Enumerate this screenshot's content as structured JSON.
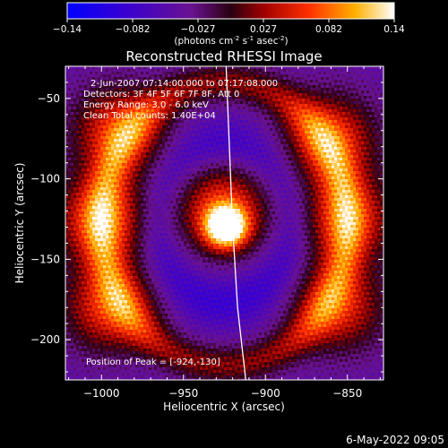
{
  "colorbar": {
    "ticks": [
      "-0.14",
      "-0.082",
      "-0.027",
      "0.027",
      "0.082",
      "0.14"
    ],
    "units_prefix": "(photons cm",
    "units_sup1": "-2",
    "units_mid": " s",
    "units_sup2": "-1",
    "units_mid2": " asec",
    "units_sup3": "-2",
    "units_suffix": ")"
  },
  "footer": {
    "date": "6-May-2022 09:05"
  },
  "chart_data": {
    "type": "heatmap",
    "title": "Reconstructed RHESSI Image",
    "xlabel": "Heliocentric X (arcsec)",
    "ylabel": "Heliocentric Y (arcsec)",
    "xlim": [
      -1022,
      -828
    ],
    "ylim": [
      -225,
      -30
    ],
    "x_ticks": [
      -1000,
      -950,
      -900,
      -850
    ],
    "y_ticks": [
      -50,
      -100,
      -150,
      -200
    ],
    "x_tick_labels": [
      "−1000",
      "−950",
      "−900",
      "−850"
    ],
    "y_tick_labels": [
      "−50",
      "−100",
      "−150",
      "−200"
    ],
    "color_range": [
      -0.14,
      0.14
    ],
    "colormap": "rainbow-thermal",
    "annotations": [
      "2-Jun-2007 07:14:00.000 to 07:17:08.000",
      "Detectors: 3F 4F 5F 6F 7F 8F, Att 0",
      "Energy Range: 3.0 - 6.0 keV",
      "Clean     Total counts: 1.40E+04"
    ],
    "peak_label": "Position of Peak = [-924,-130]",
    "peak_position": [
      -924,
      -130
    ],
    "source_blobs": [
      {
        "x": -924,
        "y": -130,
        "value": 0.14
      },
      {
        "x": -926,
        "y": -118,
        "value": 0.06
      },
      {
        "x": -1000,
        "y": -125,
        "value": 0.07
      },
      {
        "x": -990,
        "y": -70,
        "value": 0.06
      },
      {
        "x": -995,
        "y": -180,
        "value": 0.06
      },
      {
        "x": -850,
        "y": -125,
        "value": 0.06
      },
      {
        "x": -860,
        "y": -75,
        "value": 0.06
      },
      {
        "x": -855,
        "y": -180,
        "value": 0.05
      }
    ],
    "limb_curve": [
      [
        -924,
        -30
      ],
      [
        -922,
        -80
      ],
      [
        -920,
        -130
      ],
      [
        -917,
        -180
      ],
      [
        -912,
        -225
      ]
    ]
  }
}
